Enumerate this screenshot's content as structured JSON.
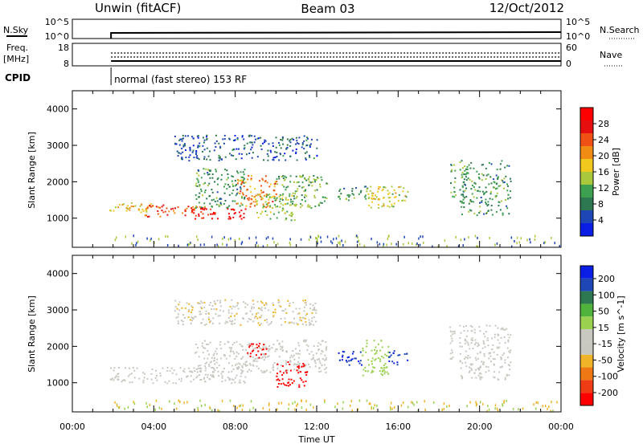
{
  "header": {
    "station": "Unwin (fitACF)",
    "beam": "Beam 03",
    "date": "12/Oct/2012"
  },
  "strip_nsky": {
    "left_label": "N.Sky",
    "right_label": "N.Search",
    "left_ticks": [
      "10^5",
      "10^0"
    ],
    "right_ticks": [
      "10^5",
      "10^0"
    ]
  },
  "strip_freq": {
    "left_label_1": "Freq.",
    "left_label_2": "[MHz]",
    "right_label": "Nave",
    "left_ticks": [
      "18",
      "8"
    ],
    "right_ticks": [
      "60",
      "0"
    ]
  },
  "cpid": {
    "label": "CPID",
    "value": "normal (fast stereo) 153 RF",
    "start_hour": 1.9
  },
  "colors": {
    "power": [
      "#0a1ee6",
      "#1e46b4",
      "#2d7850",
      "#3ca050",
      "#aac83c",
      "#f0c81e",
      "#f08c14",
      "#f05014",
      "#e60f0f",
      "#ff0000"
    ],
    "velocity": [
      "#ff0000",
      "#f03c14",
      "#f07814",
      "#f0b428",
      "#c8c8c0",
      "#c8c8c0",
      "#9ad250",
      "#50b43c",
      "#2d7850",
      "#1e46b4",
      "#0a1ee6"
    ],
    "ground": "#c8c8c0"
  },
  "chart_data": [
    {
      "type": "heatmap",
      "name": "power",
      "xlabel": "Time UT",
      "ylabel": "Slant Range [km]",
      "xlim": [
        0,
        24
      ],
      "ylim": [
        200,
        4500
      ],
      "x_ticks": [
        "00:00",
        "04:00",
        "08:00",
        "12:00",
        "16:00",
        "20:00",
        "00:00"
      ],
      "y_ticks": [
        1000,
        2000,
        3000,
        4000
      ],
      "colorbar": {
        "label": "Power [dB]",
        "ticks": [
          4,
          8,
          12,
          16,
          20,
          24,
          28
        ],
        "range": [
          0,
          32
        ]
      },
      "regions": [
        {
          "t0": 1.8,
          "t1": 4.0,
          "r0": 1150,
          "r1": 1450,
          "value": 18
        },
        {
          "t0": 3.5,
          "t1": 6.5,
          "r0": 1050,
          "r1": 1400,
          "value": 24
        },
        {
          "t0": 5.5,
          "t1": 8.5,
          "r0": 1000,
          "r1": 1300,
          "value": 28
        },
        {
          "t0": 6.0,
          "t1": 8.5,
          "r0": 1300,
          "r1": 2400,
          "value": 10
        },
        {
          "t0": 8.0,
          "t1": 10.0,
          "r0": 1300,
          "r1": 2200,
          "value": 22
        },
        {
          "t0": 9.0,
          "t1": 11.0,
          "r0": 950,
          "r1": 1700,
          "value": 14
        },
        {
          "t0": 10.0,
          "t1": 12.5,
          "r0": 1300,
          "r1": 2200,
          "value": 12
        },
        {
          "t0": 13.0,
          "t1": 14.5,
          "r0": 1500,
          "r1": 1900,
          "value": 10
        },
        {
          "t0": 14.5,
          "t1": 16.5,
          "r0": 1300,
          "r1": 1900,
          "value": 16
        },
        {
          "t0": 5.0,
          "t1": 12.0,
          "r0": 2600,
          "r1": 3300,
          "value": 6
        },
        {
          "t0": 18.5,
          "t1": 18.8,
          "r0": 1600,
          "r1": 2600,
          "value": 10
        },
        {
          "t0": 19.0,
          "t1": 21.5,
          "r0": 1100,
          "r1": 2600,
          "value": 10
        }
      ]
    },
    {
      "type": "heatmap",
      "name": "velocity",
      "xlabel": "Time UT",
      "ylabel": "Slant Range [km]",
      "xlim": [
        0,
        24
      ],
      "ylim": [
        200,
        4500
      ],
      "x_ticks": [
        "00:00",
        "04:00",
        "08:00",
        "12:00",
        "16:00",
        "20:00",
        "00:00"
      ],
      "y_ticks": [
        1000,
        2000,
        3000,
        4000
      ],
      "colorbar": {
        "label": "Velocity [m s^-1]",
        "ticks": [
          "200",
          "100",
          "50",
          "15",
          "-15",
          "-50",
          "-100",
          "-200"
        ],
        "range": [
          -250,
          250
        ]
      },
      "regions": [
        {
          "t0": 1.8,
          "t1": 8.5,
          "r0": 1000,
          "r1": 1450,
          "value": 0
        },
        {
          "t0": 6.0,
          "t1": 12.5,
          "r0": 1300,
          "r1": 2200,
          "value": 0
        },
        {
          "t0": 8.5,
          "t1": 9.5,
          "r0": 1700,
          "r1": 2100,
          "value": -230
        },
        {
          "t0": 10.0,
          "t1": 11.5,
          "r0": 900,
          "r1": 1600,
          "value": -230
        },
        {
          "t0": 13.0,
          "t1": 14.2,
          "r0": 1500,
          "r1": 1900,
          "value": 200
        },
        {
          "t0": 14.2,
          "t1": 15.5,
          "r0": 1200,
          "r1": 2200,
          "value": 40
        },
        {
          "t0": 15.5,
          "t1": 16.5,
          "r0": 1500,
          "r1": 1900,
          "value": 200
        },
        {
          "t0": 5.0,
          "t1": 12.0,
          "r0": 2600,
          "r1": 3300,
          "value": -60
        },
        {
          "t0": 18.5,
          "t1": 18.8,
          "r0": 1600,
          "r1": 2600,
          "value": 0
        },
        {
          "t0": 19.0,
          "t1": 21.5,
          "r0": 1100,
          "r1": 2600,
          "value": 0
        }
      ]
    }
  ]
}
